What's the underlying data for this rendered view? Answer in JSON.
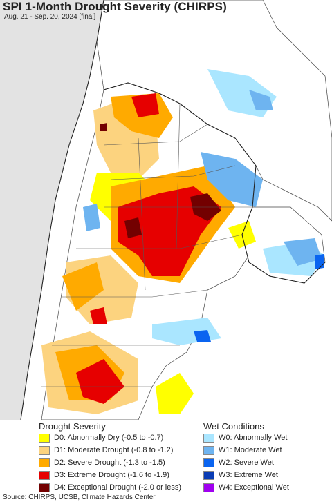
{
  "title": "SPI 1-Month Drought Severity (CHIRPS)",
  "subtitle": "Aug. 21 - Sep. 20, 2024 [final]",
  "legend": {
    "drought_title": "Drought Severity",
    "drought_items": [
      {
        "label": "D0: Abnormally Dry (-0.5 to -0.7)",
        "color": "#ffff00"
      },
      {
        "label": "D1: Moderate Drought (-0.8 to -1.2)",
        "color": "#fcd37f"
      },
      {
        "label": "D2: Severe Drought (-1.3 to -1.5)",
        "color": "#ffaa00"
      },
      {
        "label": "D3: Extreme Drought (-1.6 to -1.9)",
        "color": "#e60000"
      },
      {
        "label": "D4: Exceptional Drought (-2.0 or less)",
        "color": "#730000"
      }
    ],
    "wet_title": "Wet Conditions",
    "wet_items": [
      {
        "label": "W0: Abnormally Wet",
        "color": "#aae6ff"
      },
      {
        "label": "W1: Moderate Wet",
        "color": "#6eb4f0"
      },
      {
        "label": "W2: Severe Wet",
        "color": "#0a64f0"
      },
      {
        "label": "W3: Extreme Wet",
        "color": "#0a3cb4"
      },
      {
        "label": "W4: Exceptional Wet",
        "color": "#a000f0"
      }
    ]
  },
  "source": "Source: CHIRPS, UCSB, Climate Hazards Center"
}
